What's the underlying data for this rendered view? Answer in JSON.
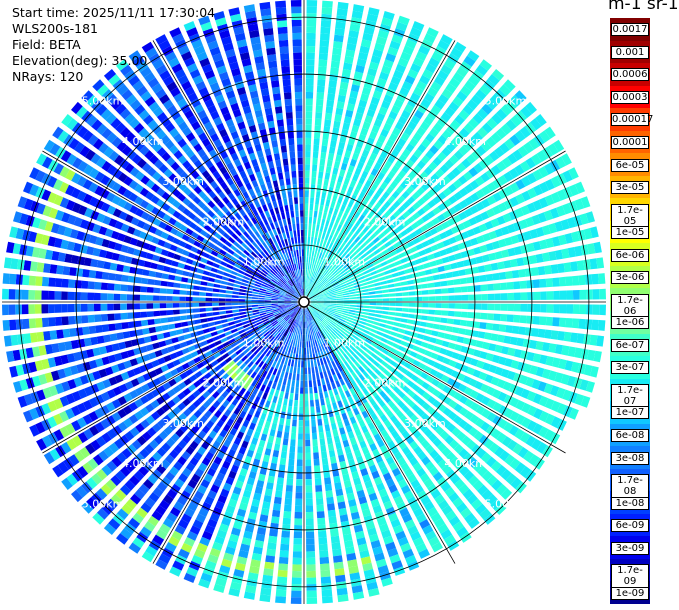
{
  "info": {
    "start_time": "Start time: 2025/11/11 17:30:04",
    "instrument": "WLS200s-181",
    "field": "Field: BETA",
    "elevation": "Elevation(deg): 35.00",
    "nrays": "NRays: 120"
  },
  "colorbar": {
    "title": "m-1 sr-1",
    "labels": [
      "0.0017",
      "0.001",
      "0.0006",
      "0.0003",
      "0.00017",
      "0.0001",
      "6e-05",
      "3e-05",
      "1.7e-05",
      "1e-05",
      "6e-06",
      "3e-06",
      "1.7e-06",
      "1e-06",
      "6e-07",
      "3e-07",
      "1.7e-07",
      "1e-07",
      "6e-08",
      "3e-08",
      "1.7e-08",
      "1e-08",
      "6e-09",
      "3e-09",
      "1.7e-09",
      "1e-09"
    ],
    "colors": [
      "#800000",
      "#a00000",
      "#c80000",
      "#ff0000",
      "#ff3c00",
      "#ff6400",
      "#ff8c00",
      "#ffb400",
      "#ffd700",
      "#ffff00",
      "#d8ff20",
      "#b0ff48",
      "#90ff70",
      "#70ffa0",
      "#40ffc8",
      "#28ffe0",
      "#18ecf4",
      "#10c8ff",
      "#10a0ff",
      "#1080ff",
      "#1060ff",
      "#0040ff",
      "#0020ff",
      "#0000ee",
      "#0000c0",
      "#000090"
    ]
  },
  "chart_data": {
    "type": "heatmap",
    "projection": "polar PPI",
    "nrays": 120,
    "elevation_deg": 35.0,
    "range_rings_km": [
      1,
      2,
      3,
      4,
      5
    ],
    "range_ring_labels": [
      "1.00km",
      "2.00km",
      "3.00km",
      "4.00km",
      "5.00km"
    ],
    "max_range_km": 5.3,
    "sectors": [
      {
        "azimuth_from_deg": 0,
        "azimuth_to_deg": 150,
        "dominant_value": "1.7e-07",
        "character": "uniform cyan"
      },
      {
        "azimuth_from_deg": 150,
        "azimuth_to_deg": 200,
        "dominant_value": "1e-07",
        "character": "cyan with enhanced band near 4.5 km"
      },
      {
        "azimuth_from_deg": 200,
        "azimuth_to_deg": 360,
        "dominant_value": "1e-08",
        "character": "noisy blue with arc near 4.8 km"
      }
    ],
    "features": [
      {
        "type": "arc",
        "range_km": 4.7,
        "azimuth_from_deg": 165,
        "azimuth_to_deg": 300,
        "peak_value": "1.7e-06"
      },
      {
        "type": "arc",
        "range_km": 1.75,
        "azimuth_from_deg": 213,
        "azimuth_to_deg": 230,
        "peak_value": "3e-06"
      }
    ]
  }
}
